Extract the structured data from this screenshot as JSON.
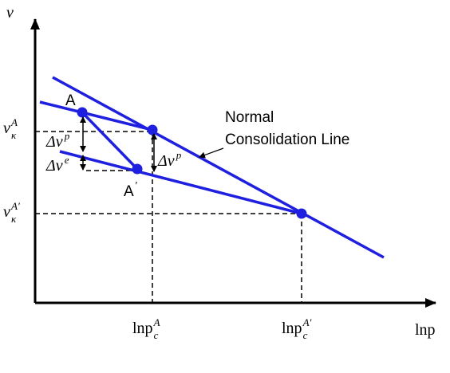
{
  "axes": {
    "y_label": "v",
    "x_label": "lnp"
  },
  "labels": {
    "v_A": {
      "base": "v",
      "sub": "κ",
      "sup": "A"
    },
    "v_A_prime": {
      "base": "v",
      "sub": "κ",
      "sup": "A′"
    },
    "point_A": "A",
    "point_A_prime": {
      "base": "A",
      "sup": "′"
    },
    "delta_vp_left": {
      "base": "Δv",
      "sup": "p"
    },
    "delta_ve": {
      "base": "Δv",
      "sup": "e"
    },
    "delta_vp_right": {
      "base": "Δv",
      "sup": "p"
    },
    "ncl_line1": "Normal",
    "ncl_line2": "Consolidation Line",
    "p_A": {
      "base": "lnp",
      "sub": "c",
      "sup": "A"
    },
    "p_A_prime": {
      "base": "lnp",
      "sub": "c",
      "sup": "A′"
    }
  }
}
